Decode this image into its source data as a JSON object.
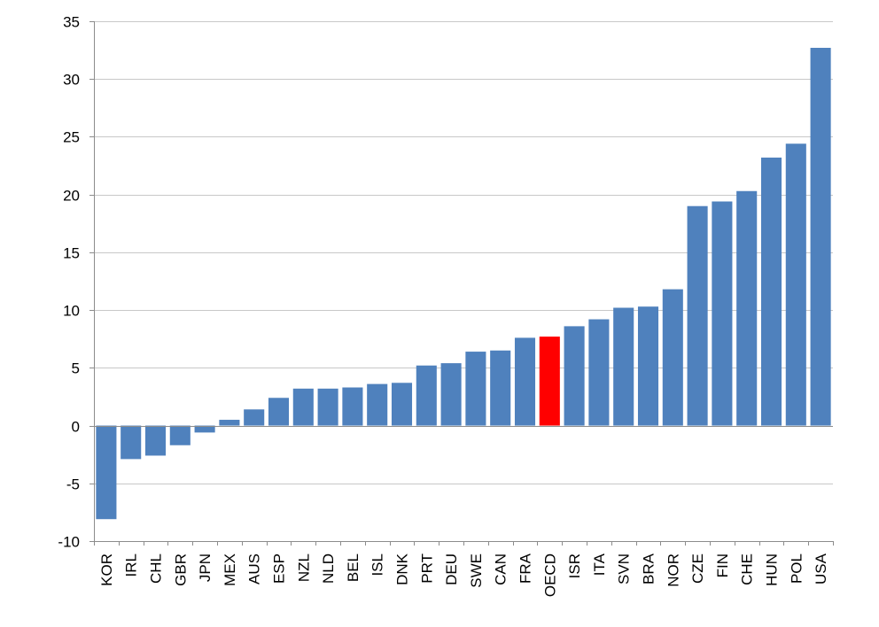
{
  "chart_data": {
    "type": "bar",
    "categories": [
      "KOR",
      "IRL",
      "CHL",
      "GBR",
      "JPN",
      "MEX",
      "AUS",
      "ESP",
      "NZL",
      "NLD",
      "BEL",
      "ISL",
      "DNK",
      "PRT",
      "DEU",
      "SWE",
      "CAN",
      "FRA",
      "OECD",
      "ISR",
      "ITA",
      "SVN",
      "BRA",
      "NOR",
      "CZE",
      "FIN",
      "CHE",
      "HUN",
      "POL",
      "USA"
    ],
    "values": [
      -8.1,
      -2.9,
      -2.6,
      -1.7,
      -0.6,
      0.5,
      1.4,
      2.4,
      3.2,
      3.2,
      3.3,
      3.6,
      3.7,
      5.2,
      5.4,
      6.4,
      6.5,
      7.6,
      7.7,
      8.6,
      9.2,
      10.2,
      10.3,
      11.8,
      19.0,
      19.4,
      20.3,
      23.2,
      24.4,
      32.7
    ],
    "highlight_category": "OECD",
    "colors": {
      "bar": "#4f81bd",
      "highlight": "#ff0000"
    },
    "title": "",
    "xlabel": "",
    "ylabel": "",
    "ylim": [
      -10,
      35
    ],
    "yticks": [
      -10,
      -5,
      0,
      5,
      10,
      15,
      20,
      25,
      30,
      35
    ],
    "ytick_labels": [
      "-10",
      "-5",
      "0",
      "5",
      "10",
      "15",
      "20",
      "25",
      "30",
      "35"
    ],
    "grid": true,
    "legend": "none",
    "category_label_rotation": "vertical"
  }
}
